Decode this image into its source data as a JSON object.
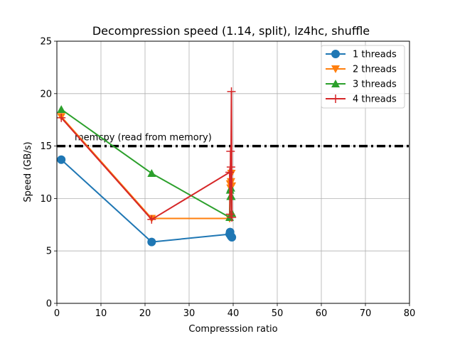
{
  "chart_data": {
    "type": "line",
    "title": "Decompression speed (1.14, split), lz4hc, shuffle",
    "xlabel": "Compresssion ratio",
    "ylabel": "Speed (GB/s)",
    "xlim": [
      0,
      80
    ],
    "ylim": [
      0,
      25
    ],
    "xticks": [
      0,
      10,
      20,
      30,
      40,
      50,
      60,
      70,
      80
    ],
    "yticks": [
      0,
      5,
      10,
      15,
      20,
      25
    ],
    "grid": true,
    "legend_position": "top-right",
    "reference_line": {
      "y": 15,
      "label": "memcpy (read from memory)",
      "color": "#000000",
      "style": "dash-dot"
    },
    "series": [
      {
        "name": "1 threads",
        "color": "#1f77b4",
        "marker": "circle",
        "x": [
          1.0,
          21.5,
          39.2,
          39.3,
          39.5,
          39.7
        ],
        "y": [
          13.7,
          5.85,
          6.6,
          6.8,
          6.4,
          6.3
        ]
      },
      {
        "name": "2 threads",
        "color": "#ff7f0e",
        "marker": "triangle-down",
        "x": [
          1.0,
          21.5,
          39.2,
          39.3,
          39.4,
          39.5,
          39.6,
          39.7
        ],
        "y": [
          17.8,
          8.1,
          8.1,
          11.4,
          11.0,
          11.6,
          12.4,
          11.2
        ]
      },
      {
        "name": "3 threads",
        "color": "#2ca02c",
        "marker": "triangle-up",
        "x": [
          1.0,
          21.5,
          39.2,
          39.3,
          39.4,
          39.5,
          39.6,
          39.7
        ],
        "y": [
          18.5,
          12.4,
          8.2,
          10.8,
          10.2,
          11.0,
          10.2,
          8.6
        ]
      },
      {
        "name": "4 threads",
        "color": "#d62728",
        "marker": "plus",
        "x": [
          1.0,
          21.5,
          39.2,
          39.3,
          39.4,
          39.5,
          39.6,
          39.7
        ],
        "y": [
          17.7,
          8.0,
          12.5,
          8.5,
          14.5,
          13.0,
          20.2,
          8.2
        ]
      }
    ]
  }
}
